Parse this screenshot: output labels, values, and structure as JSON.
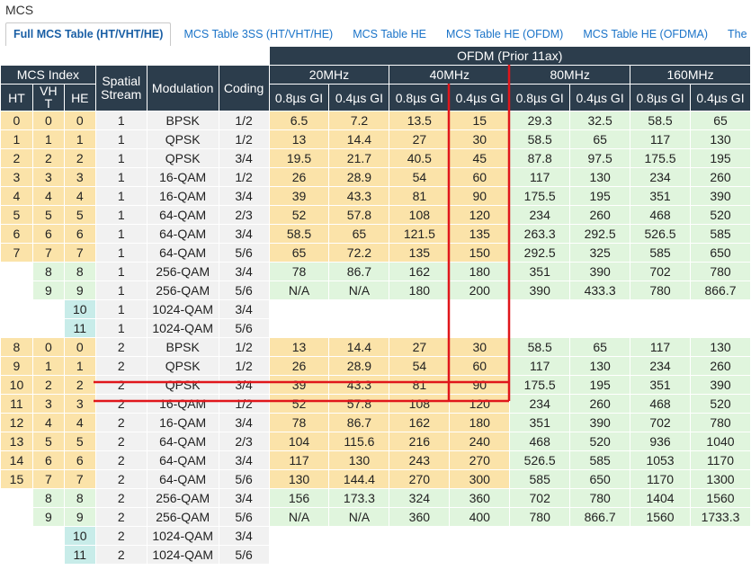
{
  "page_title": "MCS",
  "tabs": [
    {
      "label": "Full MCS Table (HT/VHT/HE)",
      "active": true
    },
    {
      "label": "MCS Table 3SS (HT/VHT/HE)",
      "active": false
    },
    {
      "label": "MCS Table HE",
      "active": false
    },
    {
      "label": "MCS Table HE (OFDM)",
      "active": false
    },
    {
      "label": "MCS Table HE (OFDMA)",
      "active": false
    },
    {
      "label": "The Math",
      "active": false
    }
  ],
  "headers": {
    "ofdm": "OFDM (Prior 11ax)",
    "mcs_index": "MCS Index",
    "spatial_stream": "Spatial Stream",
    "modulation": "Modulation",
    "coding": "Coding",
    "ht": "HT",
    "vht": "VHT",
    "he": "HE",
    "bandwidths": [
      "20MHz",
      "40MHz",
      "80MHz",
      "160MHz"
    ],
    "gi": [
      "0.8µs GI",
      "0.4µs GI",
      "0.8µs GI",
      "0.4µs GI",
      "0.8µs GI",
      "0.4µs GI",
      "0.8µs GI",
      "0.4µs GI"
    ]
  },
  "rows": [
    [
      "0",
      "0",
      "0",
      "1",
      "BPSK",
      "1/2",
      "6.5",
      "7.2",
      "13.5",
      "15",
      "29.3",
      "32.5",
      "58.5",
      "65"
    ],
    [
      "1",
      "1",
      "1",
      "1",
      "QPSK",
      "1/2",
      "13",
      "14.4",
      "27",
      "30",
      "58.5",
      "65",
      "117",
      "130"
    ],
    [
      "2",
      "2",
      "2",
      "1",
      "QPSK",
      "3/4",
      "19.5",
      "21.7",
      "40.5",
      "45",
      "87.8",
      "97.5",
      "175.5",
      "195"
    ],
    [
      "3",
      "3",
      "3",
      "1",
      "16-QAM",
      "1/2",
      "26",
      "28.9",
      "54",
      "60",
      "117",
      "130",
      "234",
      "260"
    ],
    [
      "4",
      "4",
      "4",
      "1",
      "16-QAM",
      "3/4",
      "39",
      "43.3",
      "81",
      "90",
      "175.5",
      "195",
      "351",
      "390"
    ],
    [
      "5",
      "5",
      "5",
      "1",
      "64-QAM",
      "2/3",
      "52",
      "57.8",
      "108",
      "120",
      "234",
      "260",
      "468",
      "520"
    ],
    [
      "6",
      "6",
      "6",
      "1",
      "64-QAM",
      "3/4",
      "58.5",
      "65",
      "121.5",
      "135",
      "263.3",
      "292.5",
      "526.5",
      "585"
    ],
    [
      "7",
      "7",
      "7",
      "1",
      "64-QAM",
      "5/6",
      "65",
      "72.2",
      "135",
      "150",
      "292.5",
      "325",
      "585",
      "650"
    ],
    [
      "",
      "8",
      "8",
      "1",
      "256-QAM",
      "3/4",
      "78",
      "86.7",
      "162",
      "180",
      "351",
      "390",
      "702",
      "780"
    ],
    [
      "",
      "9",
      "9",
      "1",
      "256-QAM",
      "5/6",
      "N/A",
      "N/A",
      "180",
      "200",
      "390",
      "433.3",
      "780",
      "866.7"
    ],
    [
      "",
      "",
      "10",
      "1",
      "1024-QAM",
      "3/4",
      "",
      "",
      "",
      "",
      "",
      "",
      "",
      ""
    ],
    [
      "",
      "",
      "11",
      "1",
      "1024-QAM",
      "5/6",
      "",
      "",
      "",
      "",
      "",
      "",
      "",
      ""
    ],
    [
      "8",
      "0",
      "0",
      "2",
      "BPSK",
      "1/2",
      "13",
      "14.4",
      "27",
      "30",
      "58.5",
      "65",
      "117",
      "130"
    ],
    [
      "9",
      "1",
      "1",
      "2",
      "QPSK",
      "1/2",
      "26",
      "28.9",
      "54",
      "60",
      "117",
      "130",
      "234",
      "260"
    ],
    [
      "10",
      "2",
      "2",
      "2",
      "QPSK",
      "3/4",
      "39",
      "43.3",
      "81",
      "90",
      "175.5",
      "195",
      "351",
      "390"
    ],
    [
      "11",
      "3",
      "3",
      "2",
      "16-QAM",
      "1/2",
      "52",
      "57.8",
      "108",
      "120",
      "234",
      "260",
      "468",
      "520"
    ],
    [
      "12",
      "4",
      "4",
      "2",
      "16-QAM",
      "3/4",
      "78",
      "86.7",
      "162",
      "180",
      "351",
      "390",
      "702",
      "780"
    ],
    [
      "13",
      "5",
      "5",
      "2",
      "64-QAM",
      "2/3",
      "104",
      "115.6",
      "216",
      "240",
      "468",
      "520",
      "936",
      "1040"
    ],
    [
      "14",
      "6",
      "6",
      "2",
      "64-QAM",
      "3/4",
      "117",
      "130",
      "243",
      "270",
      "526.5",
      "585",
      "1053",
      "1170"
    ],
    [
      "15",
      "7",
      "7",
      "2",
      "64-QAM",
      "5/6",
      "130",
      "144.4",
      "270",
      "300",
      "585",
      "650",
      "1170",
      "1300"
    ],
    [
      "",
      "8",
      "8",
      "2",
      "256-QAM",
      "3/4",
      "156",
      "173.3",
      "324",
      "360",
      "702",
      "780",
      "1404",
      "1560"
    ],
    [
      "",
      "9",
      "9",
      "2",
      "256-QAM",
      "5/6",
      "N/A",
      "N/A",
      "360",
      "400",
      "780",
      "866.7",
      "1560",
      "1733.3"
    ],
    [
      "",
      "",
      "10",
      "2",
      "1024-QAM",
      "3/4",
      "",
      "",
      "",
      "",
      "",
      "",
      "",
      ""
    ],
    [
      "",
      "",
      "11",
      "2",
      "1024-QAM",
      "5/6",
      "",
      "",
      "",
      "",
      "",
      "",
      "",
      ""
    ]
  ],
  "colors": {
    "header": "#2c3d4c",
    "ht_rows": "#fbe3a9",
    "vht_rows": "#e0f5dd",
    "he_rows": "#c8ece9",
    "highlight": "#e0161b"
  }
}
